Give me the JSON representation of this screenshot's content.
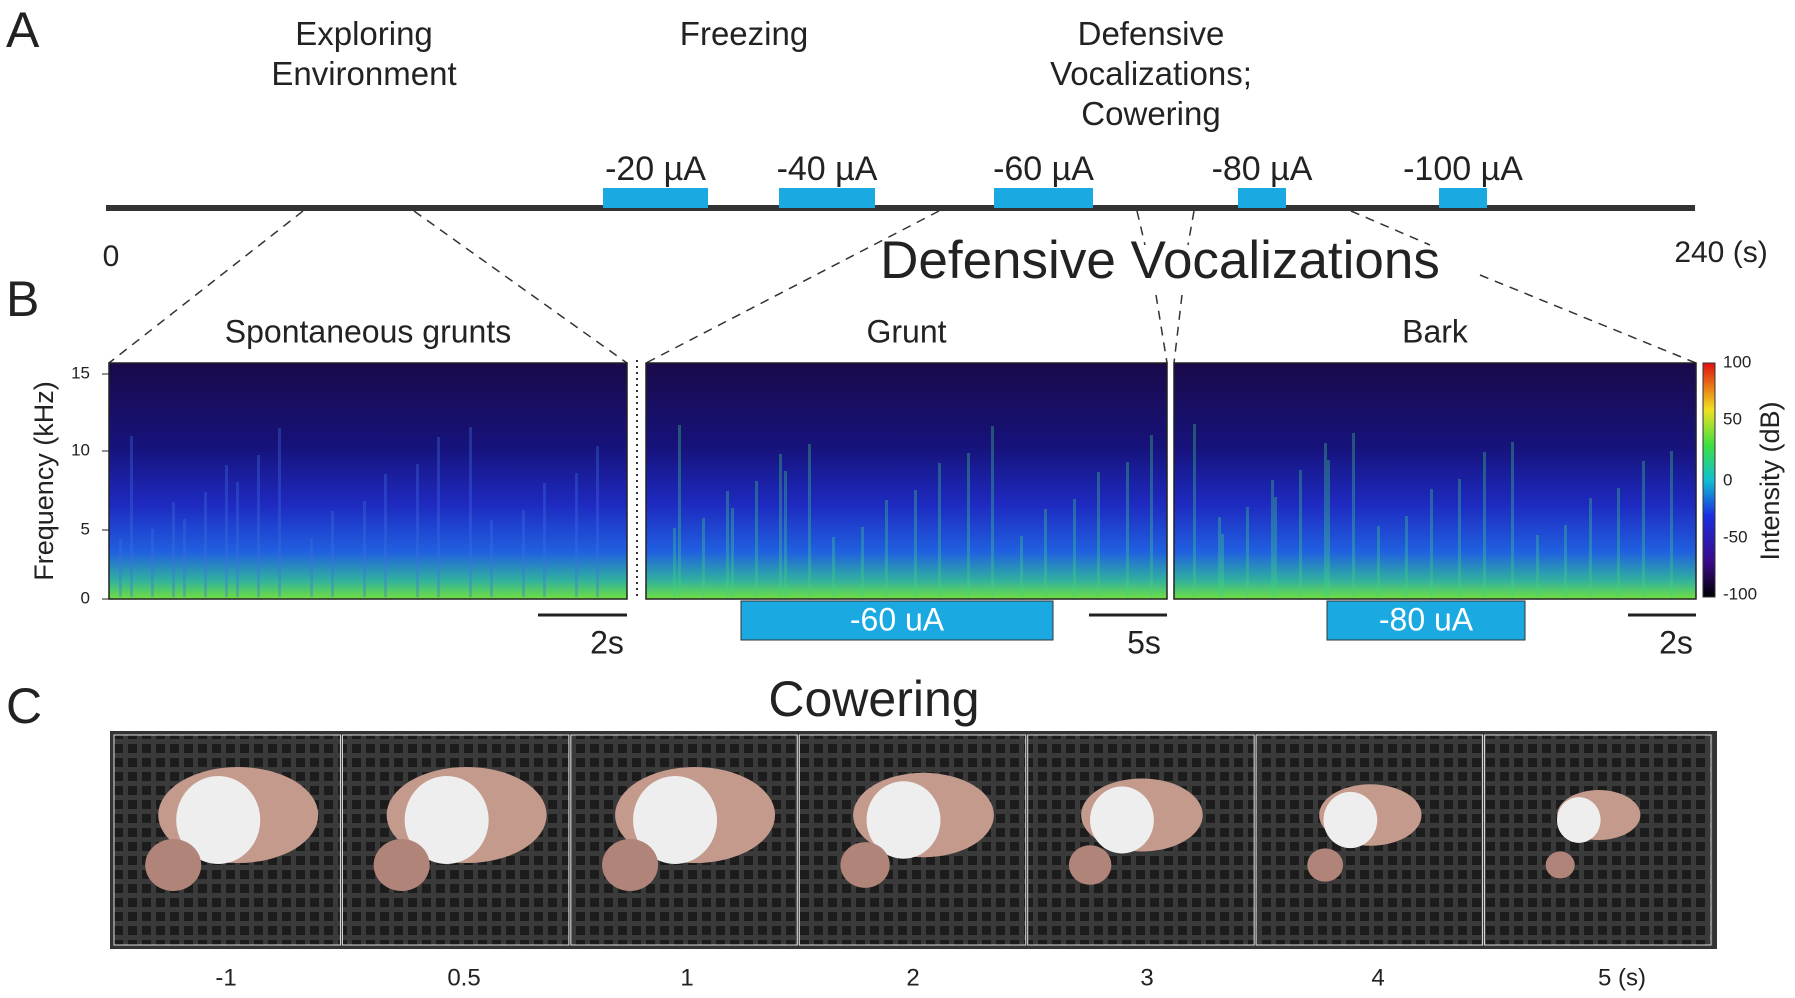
{
  "panels": {
    "A": {
      "label": "A",
      "behaviors": [
        "Exploring Environment",
        "Freezing",
        "Defensive Vocalizations; Cowering"
      ],
      "stimuli": [
        "-20 µA",
        "-40 µA",
        "-60 µA",
        "-80 µA",
        "-100 µA"
      ],
      "time_start": "0",
      "time_end": "240 (s)"
    },
    "B": {
      "label": "B",
      "title": "Defensive Vocalizations",
      "spectrograms": [
        {
          "title": "Spontaneous grunts",
          "scale_bar": "2s"
        },
        {
          "title": "Grunt",
          "stimulus": "-60 uA",
          "scale_bar": "5s"
        },
        {
          "title": "Bark",
          "stimulus": "-80 uA",
          "scale_bar": "2s"
        }
      ],
      "y_axis_label": "Frequency (kHz)",
      "y_ticks": [
        "0",
        "5",
        "10",
        "15"
      ],
      "colorbar_label": "Intensity (dB)",
      "colorbar_ticks": [
        "-100",
        "-50",
        "0",
        "50",
        "100"
      ]
    },
    "C": {
      "label": "C",
      "title": "Cowering",
      "frame_times": [
        "-1",
        "0.5",
        "1",
        "2",
        "3",
        "4",
        "5 (s)"
      ]
    }
  }
}
